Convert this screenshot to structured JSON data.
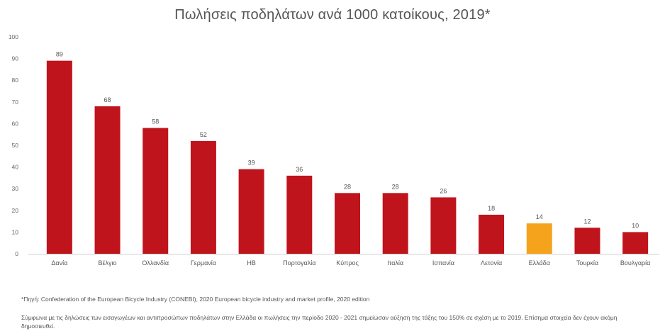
{
  "chart_data": {
    "type": "bar",
    "title": "Πωλήσεις ποδηλάτων ανά 1000 κατοίκους, 2019*",
    "categories": [
      "Δανία",
      "Βέλγιο",
      "Ολλανδία",
      "Γερμανία",
      "ΗΒ",
      "Πορτογαλία",
      "Κύπρος",
      "Ιταλία",
      "Ισπανία",
      "Λετονία",
      "Ελλάδα",
      "Τουρκία",
      "Βουλγαρία"
    ],
    "values": [
      89,
      68,
      58,
      52,
      39,
      36,
      28,
      28,
      26,
      18,
      14,
      12,
      10
    ],
    "highlight_index": 10,
    "colors": {
      "bar": "#c0141c",
      "highlight": "#f5a31c"
    },
    "ylim": [
      0,
      100
    ],
    "yticks": [
      0,
      10,
      20,
      30,
      40,
      50,
      60,
      70,
      80,
      90,
      100
    ],
    "grid": false,
    "legend": "none",
    "xlabel": "",
    "ylabel": ""
  },
  "footnote": "*Πηγή: Confederation of the European Bicycle Industry (CONEBI), 2020 European bicycle industry and market profile, 2020 edition",
  "note": "Σύμφωνα με τις δηλώσεις των εισαγωγέων και αντιπροσώπων ποδηλάτων στην Ελλάδα οι πωλήσεις την περίοδο 2020 - 2021 σημείωσαν αύξηση της τάξης του 150% σε σχέση με το 2019. Επίσημα στοιχεία δεν έχουν ακόμη δημοσιευθεί."
}
